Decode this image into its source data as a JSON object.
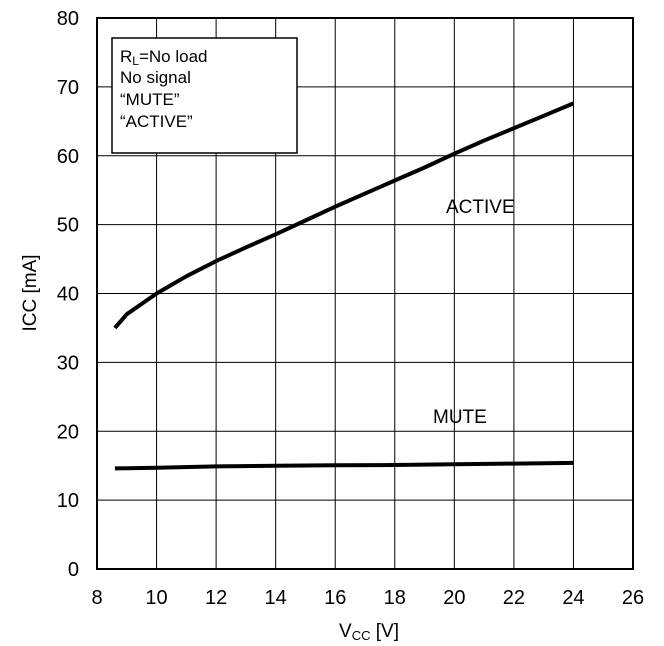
{
  "chart_data": {
    "type": "line",
    "xlabel": "V",
    "xlabel_sub": "CC",
    "xlabel_unit": " [V]",
    "ylabel": "ICC [mA]",
    "xlim": [
      8,
      26
    ],
    "ylim": [
      0,
      80
    ],
    "xticks": [
      8,
      10,
      12,
      14,
      16,
      18,
      20,
      22,
      24,
      26
    ],
    "yticks": [
      0,
      10,
      20,
      30,
      40,
      50,
      60,
      70,
      80
    ],
    "grid": true,
    "legend_box": {
      "line1_main": "R",
      "line1_sub": "L",
      "line1_rest": "=No load",
      "line2": "No signal",
      "line3": "“MUTE”",
      "line4": "“ACTIVE”"
    },
    "series": [
      {
        "name": "ACTIVE",
        "color": "#000000",
        "x": [
          8.6,
          9,
          10,
          11,
          12,
          13,
          14,
          15,
          16,
          17,
          18,
          19,
          20,
          21,
          22,
          23,
          24
        ],
        "y": [
          35.0,
          37.0,
          40.0,
          42.5,
          44.7,
          46.7,
          48.6,
          50.6,
          52.6,
          54.5,
          56.4,
          58.3,
          60.3,
          62.2,
          64.0,
          65.8,
          67.6
        ]
      },
      {
        "name": "MUTE",
        "color": "#000000",
        "x": [
          8.6,
          10,
          12,
          14,
          16,
          18,
          20,
          22,
          24
        ],
        "y": [
          14.6,
          14.7,
          14.9,
          15.0,
          15.05,
          15.1,
          15.2,
          15.3,
          15.4
        ]
      }
    ]
  }
}
